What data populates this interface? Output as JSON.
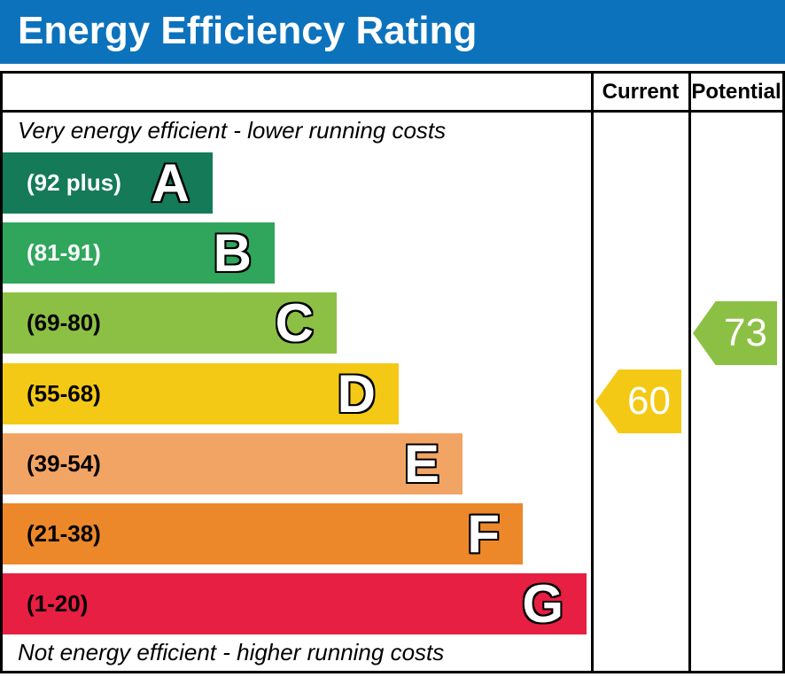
{
  "title": "Energy Efficiency Rating",
  "table": {
    "current_header": "Current",
    "potential_header": "Potential"
  },
  "notes": {
    "top": "Very energy efficient - lower running costs",
    "bottom": "Not energy efficient - higher running costs"
  },
  "colors": {
    "title_bg": "#0c72bc",
    "title_text": "#ffffff",
    "border": "#000000"
  },
  "bands": [
    {
      "letter": "A",
      "range": "(92 plus)",
      "color": "#147a58",
      "text_color": "#ffffff"
    },
    {
      "letter": "B",
      "range": "(81-91)",
      "color": "#2fa65c",
      "text_color": "#ffffff"
    },
    {
      "letter": "C",
      "range": "(69-80)",
      "color": "#8cc044",
      "text_color": "#000000"
    },
    {
      "letter": "D",
      "range": "(55-68)",
      "color": "#f4c916",
      "text_color": "#000000"
    },
    {
      "letter": "E",
      "range": "(39-54)",
      "color": "#f2a465",
      "text_color": "#000000"
    },
    {
      "letter": "F",
      "range": "(21-38)",
      "color": "#ec8829",
      "text_color": "#000000"
    },
    {
      "letter": "G",
      "range": "(1-20)",
      "color": "#e71f42",
      "text_color": "#000000"
    }
  ],
  "ratings": {
    "current": {
      "value": "60",
      "band": "D",
      "color": "#f4c916"
    },
    "potential": {
      "value": "73",
      "band": "C",
      "color": "#8cc044"
    }
  },
  "chart_data": {
    "type": "bar",
    "title": "Energy Efficiency Rating",
    "categories": [
      "A",
      "B",
      "C",
      "D",
      "E",
      "F",
      "G"
    ],
    "band_score_ranges": [
      "92 plus",
      "81-91",
      "69-80",
      "55-68",
      "39-54",
      "21-38",
      "1-20"
    ],
    "band_colors": [
      "#147a58",
      "#2fa65c",
      "#8cc044",
      "#f4c916",
      "#f2a465",
      "#ec8829",
      "#e71f42"
    ],
    "columns": [
      "Current",
      "Potential"
    ],
    "annotations": [
      {
        "label": "Current",
        "value": 60,
        "band": "D",
        "color": "#f4c916"
      },
      {
        "label": "Potential",
        "value": 73,
        "band": "C",
        "color": "#8cc044"
      }
    ],
    "top_note": "Very energy efficient - lower running costs",
    "bottom_note": "Not energy efficient - higher running costs",
    "legend_position": "none"
  }
}
